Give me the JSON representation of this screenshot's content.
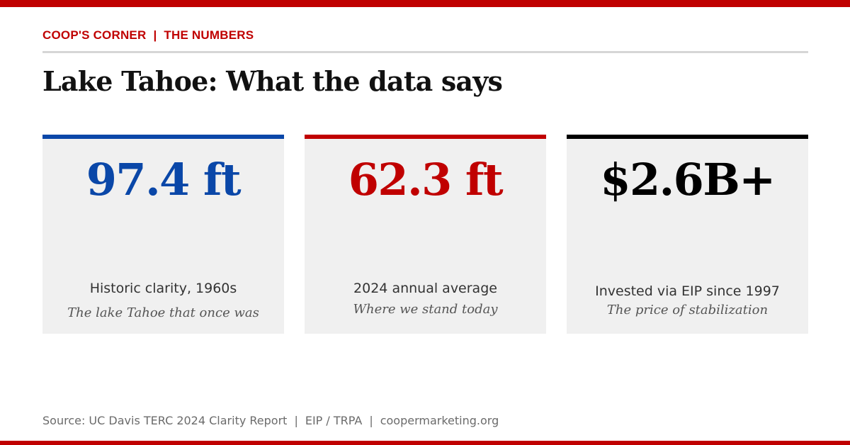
{
  "header": {
    "kicker_left": "COOP'S CORNER",
    "kicker_separator": "|",
    "kicker_right": "THE NUMBERS",
    "title": "Lake Tahoe: What the data says"
  },
  "cards": [
    {
      "value": "97.4 ft",
      "label": "Historic clarity, 1960s",
      "sub": "The lake Tahoe that once was",
      "accent_color": "#0a47a8",
      "value_color": "#0a47a8"
    },
    {
      "value": "62.3 ft",
      "label": "2024 annual average",
      "sub": "Where we stand today",
      "accent_color": "#c00000",
      "value_color": "#c00000"
    },
    {
      "value": "$2.6B+",
      "label": "Invested via EIP since 1997",
      "sub": "The price of stabilization",
      "accent_color": "#000000",
      "value_color": "#000000"
    }
  ],
  "footer": {
    "source": "Source: UC Davis TERC 2024 Clarity Report",
    "separator": "|",
    "agencies": "EIP / TRPA",
    "site": "coopermarketing.org"
  },
  "colors": {
    "brand_red": "#c00000",
    "card_bg": "#f0f0f0",
    "rule_gray": "#d6d6d6"
  }
}
